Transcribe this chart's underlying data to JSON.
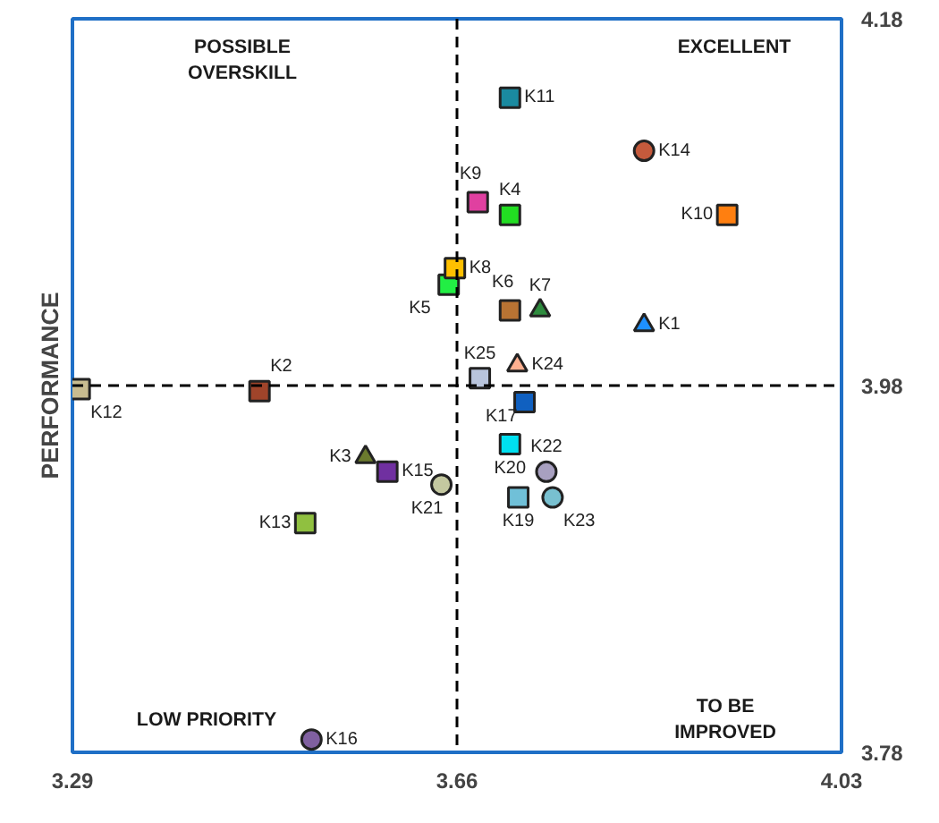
{
  "chart_data": {
    "type": "scatter",
    "ylabel": "PERFORMANCE",
    "xlim": [
      3.29,
      4.03
    ],
    "ylim": [
      3.78,
      4.18
    ],
    "xticks": [
      3.29,
      3.66,
      4.03
    ],
    "yticks": [
      3.78,
      3.98,
      4.18
    ],
    "grid": false,
    "ref_lines": [
      {
        "axis": "x",
        "value": 3.66,
        "line_style": "dashed",
        "color": "#000000"
      },
      {
        "axis": "y",
        "value": 3.98,
        "line_style": "dashed",
        "color": "#000000"
      }
    ],
    "annotations": [
      "POSSIBLE OVERSKILL",
      "EXCELLENT",
      "LOW PRIORITY",
      "TO BE IMPROVED"
    ],
    "series": [
      {
        "name": "K1",
        "color": "#1e90ff",
        "marker": "triangle",
        "x": [
          3.84
        ],
        "values": [
          4.013
        ]
      },
      {
        "name": "K2",
        "color": "#a0442a",
        "marker": "square",
        "x": [
          3.47
        ],
        "values": [
          3.977
        ]
      },
      {
        "name": "K3",
        "color": "#6b7a2e",
        "marker": "triangle",
        "x": [
          3.572
        ],
        "values": [
          3.941
        ]
      },
      {
        "name": "K4",
        "color": "#22dd22",
        "marker": "square",
        "x": [
          3.711
        ],
        "values": [
          4.073
        ]
      },
      {
        "name": "K5",
        "color": "#22ee44",
        "marker": "square",
        "x": [
          3.652
        ],
        "values": [
          4.035
        ]
      },
      {
        "name": "K6",
        "color": "#b87333",
        "marker": "square",
        "x": [
          3.711
        ],
        "values": [
          4.021
        ]
      },
      {
        "name": "K7",
        "color": "#2e8b3e",
        "marker": "triangle",
        "x": [
          3.74
        ],
        "values": [
          4.021
        ]
      },
      {
        "name": "K8",
        "color": "#ffc000",
        "marker": "square",
        "x": [
          3.658
        ],
        "values": [
          4.044
        ]
      },
      {
        "name": "K9",
        "color": "#e040a0",
        "marker": "square",
        "x": [
          3.68
        ],
        "values": [
          4.08
        ]
      },
      {
        "name": "K10",
        "color": "#ff7f10",
        "marker": "square",
        "x": [
          3.92
        ],
        "values": [
          4.073
        ]
      },
      {
        "name": "K11",
        "color": "#1a8aa0",
        "marker": "square",
        "x": [
          3.711
        ],
        "values": [
          4.137
        ]
      },
      {
        "name": "K12",
        "color": "#c8bc90",
        "marker": "square",
        "x": [
          3.297
        ],
        "values": [
          3.978
        ]
      },
      {
        "name": "K13",
        "color": "#90c040",
        "marker": "square",
        "x": [
          3.514
        ],
        "values": [
          3.905
        ]
      },
      {
        "name": "K14",
        "color": "#c55a3c",
        "marker": "circle",
        "x": [
          3.84
        ],
        "values": [
          4.108
        ]
      },
      {
        "name": "K15",
        "color": "#7030a0",
        "marker": "square",
        "x": [
          3.593
        ],
        "values": [
          3.933
        ]
      },
      {
        "name": "K16",
        "color": "#8060a0",
        "marker": "circle",
        "x": [
          3.52
        ],
        "values": [
          3.787
        ]
      },
      {
        "name": "K17",
        "color": "#1060c0",
        "marker": "square",
        "x": [
          3.725
        ],
        "values": [
          3.971
        ]
      },
      {
        "name": "K19",
        "color": "#70c0d8",
        "marker": "square",
        "x": [
          3.719
        ],
        "values": [
          3.919
        ]
      },
      {
        "name": "K20",
        "color": "#00e0f0",
        "marker": "square",
        "x": [
          3.711
        ],
        "values": [
          3.948
        ]
      },
      {
        "name": "K21",
        "color": "#c4c8a0",
        "marker": "circle",
        "x": [
          3.645
        ],
        "values": [
          3.926
        ]
      },
      {
        "name": "K22",
        "color": "#a8a0c0",
        "marker": "circle",
        "x": [
          3.746
        ],
        "values": [
          3.933
        ]
      },
      {
        "name": "K23",
        "color": "#78c0d0",
        "marker": "circle",
        "x": [
          3.752
        ],
        "values": [
          3.919
        ]
      },
      {
        "name": "K24",
        "color": "#ffb090",
        "marker": "triangle",
        "x": [
          3.718
        ],
        "values": [
          3.991
        ]
      },
      {
        "name": "K25",
        "color": "#b8c4dc",
        "marker": "square",
        "x": [
          3.682
        ],
        "values": [
          3.984
        ]
      }
    ]
  }
}
